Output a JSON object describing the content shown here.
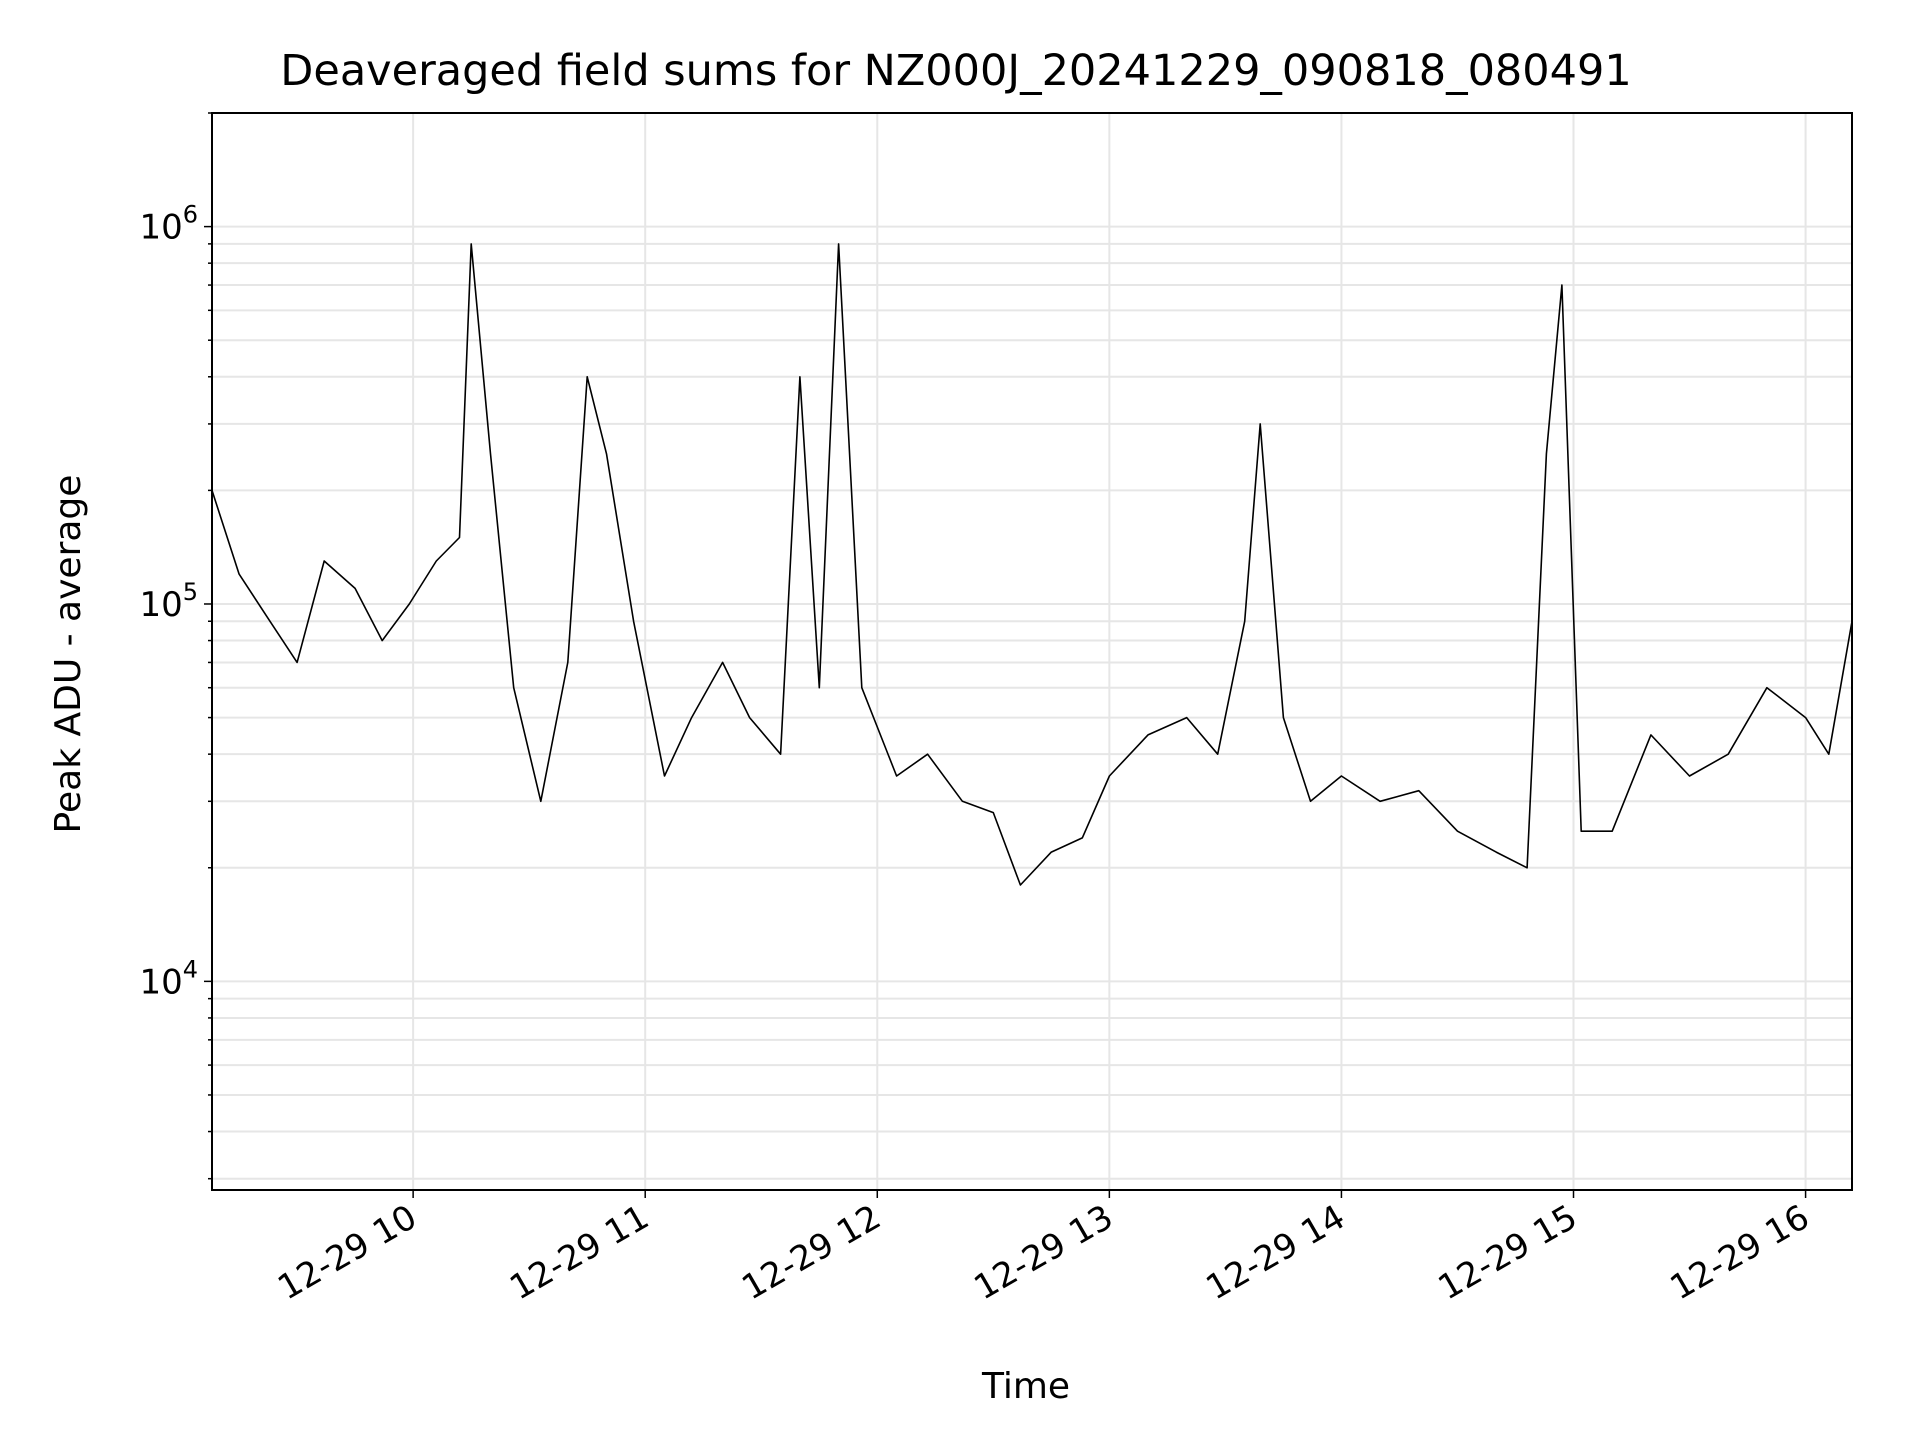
{
  "chart_data": {
    "type": "line",
    "title": "Deaveraged field sums for NZ000J_20241229_090818_080491",
    "xlabel": "Time",
    "ylabel": "Peak ADU - average",
    "y_scale": "log",
    "ylim": [
      2800,
      2000000
    ],
    "xlim": [
      "2024-12-29 09:08",
      "2024-12-29 16:12"
    ],
    "grid": true,
    "line_color": "#000000",
    "x_ticks": [
      "12-29 10",
      "12-29 11",
      "12-29 12",
      "12-29 13",
      "12-29 14",
      "12-29 15",
      "12-29 16"
    ],
    "y_ticks": [
      {
        "base": "10",
        "exp": "4",
        "value": 10000
      },
      {
        "base": "10",
        "exp": "5",
        "value": 100000
      },
      {
        "base": "10",
        "exp": "6",
        "value": 1000000
      }
    ],
    "series": [
      {
        "x": [
          "2024-12-29 09:08",
          "2024-12-29 09:15",
          "2024-12-29 09:23",
          "2024-12-29 09:30",
          "2024-12-29 09:37",
          "2024-12-29 09:45",
          "2024-12-29 09:52",
          "2024-12-29 09:59",
          "2024-12-29 10:06",
          "2024-12-29 10:12",
          "2024-12-29 10:15",
          "2024-12-29 10:20",
          "2024-12-29 10:26",
          "2024-12-29 10:33",
          "2024-12-29 10:40",
          "2024-12-29 10:45",
          "2024-12-29 10:50",
          "2024-12-29 10:57",
          "2024-12-29 11:05",
          "2024-12-29 11:12",
          "2024-12-29 11:20",
          "2024-12-29 11:27",
          "2024-12-29 11:35",
          "2024-12-29 11:40",
          "2024-12-29 11:45",
          "2024-12-29 11:50",
          "2024-12-29 11:56",
          "2024-12-29 12:05",
          "2024-12-29 12:13",
          "2024-12-29 12:22",
          "2024-12-29 12:30",
          "2024-12-29 12:37",
          "2024-12-29 12:45",
          "2024-12-29 12:53",
          "2024-12-29 13:00",
          "2024-12-29 13:10",
          "2024-12-29 13:20",
          "2024-12-29 13:28",
          "2024-12-29 13:35",
          "2024-12-29 13:39",
          "2024-12-29 13:45",
          "2024-12-29 13:52",
          "2024-12-29 14:00",
          "2024-12-29 14:10",
          "2024-12-29 14:20",
          "2024-12-29 14:30",
          "2024-12-29 14:40",
          "2024-12-29 14:48",
          "2024-12-29 14:53",
          "2024-12-29 14:57",
          "2024-12-29 15:02",
          "2024-12-29 15:10",
          "2024-12-29 15:20",
          "2024-12-29 15:30",
          "2024-12-29 15:40",
          "2024-12-29 15:50",
          "2024-12-29 16:00",
          "2024-12-29 16:06",
          "2024-12-29 16:12"
        ],
        "y": [
          200000,
          120000,
          90000,
          70000,
          130000,
          110000,
          80000,
          100000,
          130000,
          150000,
          900000,
          250000,
          60000,
          30000,
          70000,
          400000,
          250000,
          90000,
          35000,
          50000,
          70000,
          50000,
          40000,
          400000,
          60000,
          900000,
          60000,
          35000,
          40000,
          30000,
          28000,
          18000,
          22000,
          24000,
          35000,
          45000,
          50000,
          40000,
          90000,
          300000,
          50000,
          30000,
          35000,
          30000,
          32000,
          25000,
          22000,
          20000,
          250000,
          700000,
          25000,
          25000,
          45000,
          35000,
          40000,
          60000,
          50000,
          40000,
          90000
        ]
      }
    ]
  }
}
